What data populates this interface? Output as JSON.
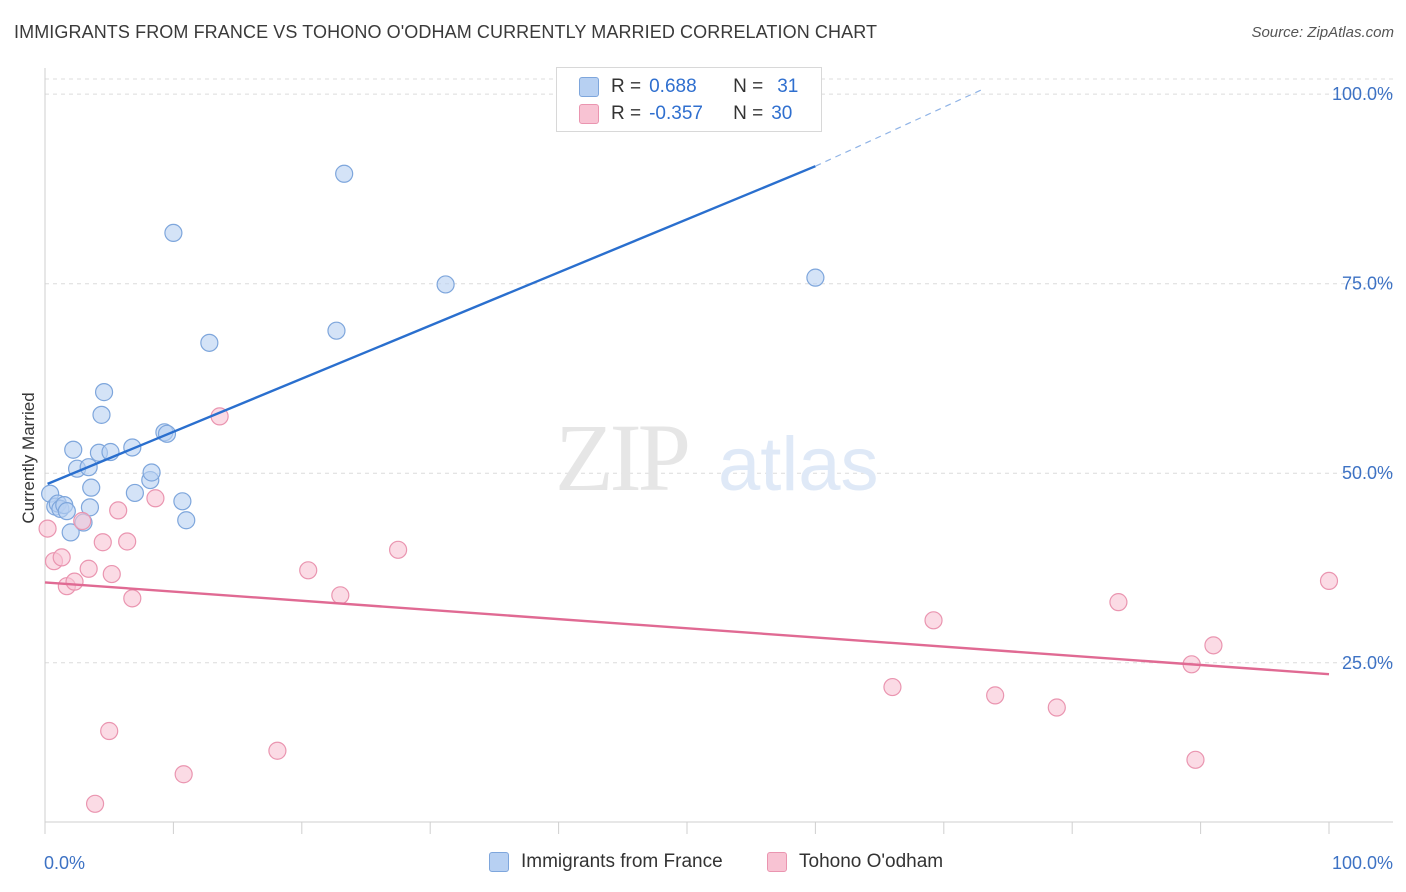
{
  "header": {
    "title": "IMMIGRANTS FROM FRANCE VS TOHONO O'ODHAM CURRENTLY MARRIED CORRELATION CHART",
    "source": "Source: ZipAtlas.com"
  },
  "watermark": {
    "zip": "ZIP",
    "atlas": "atlas"
  },
  "legend": {
    "r_label": "R =",
    "n_label": "N =",
    "rows": [
      {
        "r": "0.688",
        "n": "31"
      },
      {
        "r": "-0.357",
        "n": "30"
      }
    ]
  },
  "colors": {
    "blue_fill": "#b7d0f2",
    "blue_stroke": "#7ea6dc",
    "blue_line": "#2a6fce",
    "pink_fill": "#f8c3d3",
    "pink_stroke": "#ea95b0",
    "pink_line": "#e06a93",
    "axis_text": "#3d72c4",
    "grid": "#dcdcdc"
  },
  "chart_data": {
    "type": "scatter",
    "title": "IMMIGRANTS FROM FRANCE VS TOHONO O'ODHAM CURRENTLY MARRIED CORRELATION CHART",
    "xlabel": "",
    "ylabel": "Currently Married",
    "xlim": [
      0,
      100
    ],
    "ylim": [
      4,
      102
    ],
    "x_tick_labels": [
      "0.0%",
      "100.0%"
    ],
    "y_ticks": [
      25,
      50,
      75,
      100
    ],
    "y_tick_labels": [
      "25.0%",
      "50.0%",
      "75.0%",
      "100.0%"
    ],
    "grid": true,
    "legend_position": "bottom",
    "series": [
      {
        "name": "Immigrants from France",
        "color": "#b7d0f2",
        "points": [
          [
            0.4,
            47.3
          ],
          [
            0.8,
            45.6
          ],
          [
            1.0,
            46.0
          ],
          [
            1.2,
            45.3
          ],
          [
            1.5,
            45.8
          ],
          [
            1.7,
            45.0
          ],
          [
            2.0,
            42.2
          ],
          [
            2.2,
            53.1
          ],
          [
            2.5,
            50.6
          ],
          [
            3.0,
            43.5
          ],
          [
            3.4,
            50.8
          ],
          [
            3.5,
            45.5
          ],
          [
            3.6,
            48.1
          ],
          [
            4.2,
            52.7
          ],
          [
            4.4,
            57.7
          ],
          [
            4.6,
            60.7
          ],
          [
            5.1,
            52.8
          ],
          [
            6.8,
            53.4
          ],
          [
            7.0,
            47.4
          ],
          [
            8.2,
            49.1
          ],
          [
            8.3,
            50.1
          ],
          [
            9.3,
            55.4
          ],
          [
            9.5,
            55.2
          ],
          [
            10.0,
            81.7
          ],
          [
            10.7,
            46.3
          ],
          [
            11.0,
            43.8
          ],
          [
            12.8,
            67.2
          ],
          [
            22.7,
            68.8
          ],
          [
            23.3,
            89.5
          ],
          [
            31.2,
            74.9
          ],
          [
            60.0,
            75.8
          ]
        ]
      },
      {
        "name": "Tohono O'odham",
        "color": "#f8c3d3",
        "points": [
          [
            0.2,
            42.7
          ],
          [
            0.7,
            38.4
          ],
          [
            1.3,
            38.9
          ],
          [
            1.7,
            35.1
          ],
          [
            2.3,
            35.7
          ],
          [
            2.9,
            43.7
          ],
          [
            3.4,
            37.4
          ],
          [
            3.9,
            6.4
          ],
          [
            4.5,
            40.9
          ],
          [
            5.0,
            16.0
          ],
          [
            5.2,
            36.7
          ],
          [
            5.7,
            45.1
          ],
          [
            6.4,
            41.0
          ],
          [
            6.8,
            33.5
          ],
          [
            8.6,
            46.7
          ],
          [
            10.8,
            10.3
          ],
          [
            13.6,
            57.5
          ],
          [
            18.1,
            13.4
          ],
          [
            20.5,
            37.2
          ],
          [
            23.0,
            33.9
          ],
          [
            27.5,
            39.9
          ],
          [
            66.0,
            21.8
          ],
          [
            69.2,
            30.6
          ],
          [
            74.0,
            20.7
          ],
          [
            78.8,
            19.1
          ],
          [
            83.6,
            33.0
          ],
          [
            89.3,
            24.8
          ],
          [
            89.6,
            12.2
          ],
          [
            91.0,
            27.3
          ],
          [
            100.0,
            35.8
          ]
        ]
      }
    ],
    "trendlines": [
      {
        "series": "Immigrants from France",
        "x": [
          0.2,
          60.0
        ],
        "y": [
          48.6,
          90.5
        ],
        "dashed_extension": [
          60.0,
          73.1
        ],
        "dashed_extension_y": [
          90.5,
          100.7
        ]
      },
      {
        "series": "Tohono O'odham",
        "x": [
          0.0,
          100.0
        ],
        "y": [
          35.6,
          23.5
        ]
      }
    ]
  }
}
